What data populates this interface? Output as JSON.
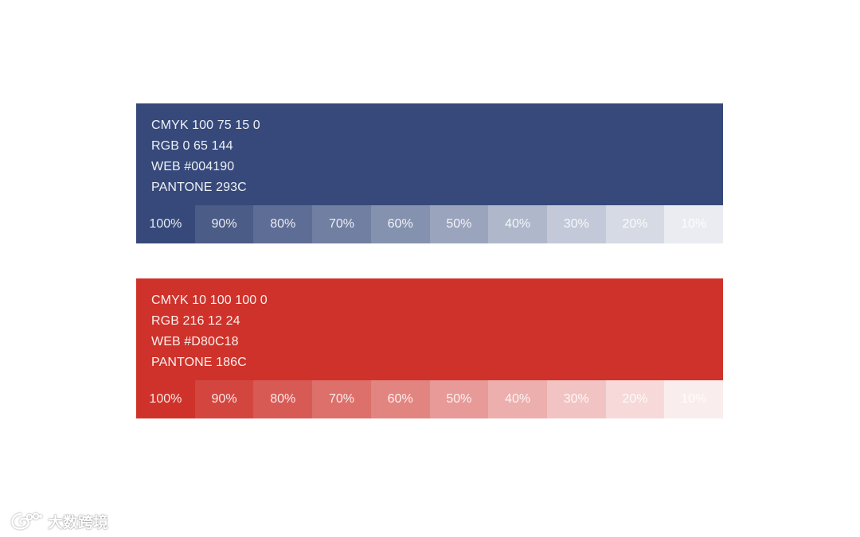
{
  "palettes": [
    {
      "id": "blue",
      "base_color": "#36497A",
      "lines": [
        "CMYK 100 75 15 0",
        "RGB 0 65 144",
        "WEB #004190",
        "PANTONE 293C"
      ],
      "tints": [
        {
          "label": "100%",
          "color": "#36497A"
        },
        {
          "label": "90%",
          "color": "#4B5C87"
        },
        {
          "label": "80%",
          "color": "#5E6D95"
        },
        {
          "label": "70%",
          "color": "#717FA2"
        },
        {
          "label": "60%",
          "color": "#8592AF"
        },
        {
          "label": "50%",
          "color": "#9AA4BD"
        },
        {
          "label": "40%",
          "color": "#AFB7CB"
        },
        {
          "label": "30%",
          "color": "#C3C9D8"
        },
        {
          "label": "20%",
          "color": "#D6DAE4"
        },
        {
          "label": "10%",
          "color": "#EAECF1"
        }
      ]
    },
    {
      "id": "red",
      "base_color": "#CF322A",
      "lines": [
        "CMYK 10 100 100 0",
        "RGB 216 12 24",
        "WEB #D80C18",
        "PANTONE 186C"
      ],
      "tints": [
        {
          "label": "100%",
          "color": "#CF322A"
        },
        {
          "label": "90%",
          "color": "#D3463F"
        },
        {
          "label": "80%",
          "color": "#D85A55"
        },
        {
          "label": "70%",
          "color": "#DD706B"
        },
        {
          "label": "60%",
          "color": "#E28581"
        },
        {
          "label": "50%",
          "color": "#E79A97"
        },
        {
          "label": "40%",
          "color": "#ECAFAD"
        },
        {
          "label": "30%",
          "color": "#F1C4C3"
        },
        {
          "label": "20%",
          "color": "#F6D9D8"
        },
        {
          "label": "10%",
          "color": "#FAEDED"
        }
      ]
    }
  ],
  "watermark": {
    "text": "大数跨境",
    "icon": "weibo-logo-icon"
  }
}
